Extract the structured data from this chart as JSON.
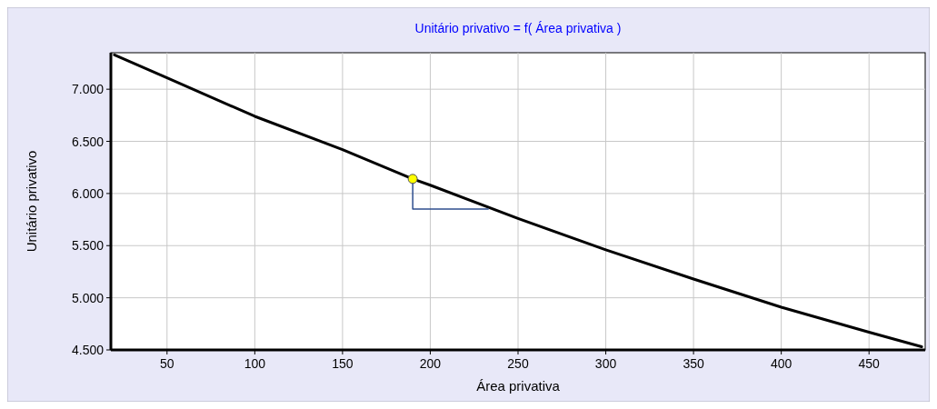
{
  "chart_data": {
    "type": "line",
    "title": "Unitário privativo = f( Área privativa )",
    "xlabel": "Área privativa",
    "ylabel": "Unitário privativo",
    "xlim": [
      18,
      482
    ],
    "xticks": [
      50,
      100,
      150,
      200,
      250,
      300,
      350,
      400,
      450
    ],
    "ylim": [
      4500,
      7350
    ],
    "yticks": [
      {
        "value": 4500,
        "label": "4.500"
      },
      {
        "value": 5000,
        "label": "5.000"
      },
      {
        "value": 5500,
        "label": "5.500"
      },
      {
        "value": 6000,
        "label": "6.000"
      },
      {
        "value": 6500,
        "label": "6.500"
      },
      {
        "value": 7000,
        "label": "7.000"
      }
    ],
    "grid": true,
    "series": [
      {
        "color": "#000000",
        "x": [
          20,
          50,
          100,
          150,
          190,
          200,
          250,
          300,
          350,
          400,
          450,
          480
        ],
        "values": [
          7330,
          7110,
          6740,
          6420,
          6140,
          6080,
          5760,
          5460,
          5180,
          4910,
          4670,
          4530
        ]
      },
      {
        "type": "line",
        "color": "#2f4f8f",
        "x": [
          190,
          190,
          233
        ],
        "values": [
          6140,
          5850,
          5850
        ]
      },
      {
        "type": "scatter",
        "color": "#ffff00",
        "marker": "circle",
        "x": [
          190
        ],
        "values": [
          6140
        ]
      }
    ]
  }
}
